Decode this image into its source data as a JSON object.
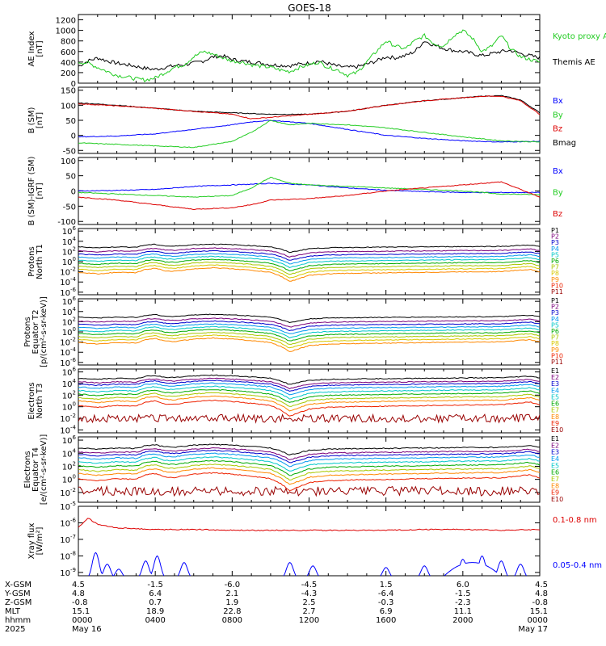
{
  "title": "GOES-18",
  "chart_data": [
    {
      "type": "line",
      "panel_id": "ae",
      "ylabel": [
        "AE Index",
        "[nT]"
      ],
      "yticks": [
        "0",
        "200",
        "400",
        "600",
        "800",
        "1000",
        "1200"
      ],
      "ylim": [
        0,
        1300
      ],
      "legend": [
        {
          "name": "Kyoto proxy AE",
          "color": "#22cc22"
        },
        {
          "name": "Themis AE",
          "color": "#000000"
        }
      ],
      "series": [
        {
          "name": "Themis AE",
          "color": "#000000",
          "x": [
            0,
            0.5,
            1,
            1.5,
            2,
            2.5,
            3,
            3.5,
            4,
            4.5,
            5,
            5.5,
            6,
            6.5,
            7,
            7.5,
            8,
            8.5,
            9,
            9.5,
            10,
            10.5,
            11,
            11.5,
            12,
            12.5,
            13,
            13.5,
            14,
            14.5,
            15,
            15.5,
            16,
            16.5,
            17,
            17.5,
            18,
            18.5,
            19,
            19.5,
            20,
            20.5,
            21,
            21.5,
            22,
            22.5,
            23,
            23.5,
            24
          ],
          "y": [
            320,
            420,
            480,
            420,
            380,
            350,
            320,
            280,
            260,
            300,
            330,
            350,
            380,
            420,
            500,
            520,
            450,
            420,
            400,
            380,
            350,
            340,
            330,
            360,
            380,
            420,
            370,
            320,
            300,
            310,
            360,
            420,
            500,
            480,
            520,
            600,
            800,
            720,
            660,
            620,
            600,
            560,
            520,
            560,
            600,
            620,
            560,
            520,
            480
          ]
        },
        {
          "name": "Kyoto proxy AE",
          "color": "#22cc22",
          "x": [
            0,
            0.5,
            1,
            1.5,
            2,
            2.5,
            3,
            3.5,
            4,
            4.5,
            5,
            5.5,
            6,
            6.5,
            7,
            7.5,
            8,
            8.5,
            9,
            9.5,
            10,
            10.5,
            11,
            11.5,
            12,
            12.5,
            13,
            13.5,
            14,
            14.5,
            15,
            15.5,
            16,
            16.5,
            17,
            17.5,
            18,
            18.5,
            19,
            19.5,
            20,
            20.5,
            21,
            21.5,
            22,
            22.5,
            23,
            23.5,
            24
          ],
          "y": [
            400,
            380,
            300,
            220,
            150,
            120,
            80,
            60,
            100,
            200,
            300,
            350,
            500,
            600,
            550,
            480,
            420,
            400,
            350,
            320,
            300,
            250,
            220,
            300,
            350,
            400,
            300,
            250,
            150,
            200,
            400,
            600,
            800,
            700,
            650,
            800,
            900,
            750,
            700,
            900,
            1000,
            850,
            600,
            700,
            900,
            650,
            500,
            450,
            400
          ]
        }
      ]
    },
    {
      "type": "line",
      "panel_id": "bsm",
      "ylabel": [
        "B (SM)",
        "[nT]"
      ],
      "yticks": [
        "-50",
        "0",
        "50",
        "100",
        "150"
      ],
      "ylim": [
        -60,
        160
      ],
      "legend": [
        {
          "name": "Bx",
          "color": "#0000ff"
        },
        {
          "name": "By",
          "color": "#22cc22"
        },
        {
          "name": "Bz",
          "color": "#dd0000"
        },
        {
          "name": "Bmag",
          "color": "#000000"
        }
      ],
      "series": [
        {
          "name": "Bmag",
          "color": "#000000",
          "x": [
            0,
            2,
            4,
            6,
            8,
            10,
            12,
            14,
            16,
            18,
            20,
            21,
            22,
            23,
            24
          ],
          "y": [
            108,
            100,
            90,
            80,
            75,
            70,
            70,
            80,
            100,
            115,
            125,
            130,
            132,
            118,
            75
          ]
        },
        {
          "name": "Bz",
          "color": "#dd0000",
          "x": [
            0,
            2,
            4,
            6,
            8,
            9,
            10,
            12,
            14,
            16,
            18,
            20,
            21,
            22,
            23,
            24
          ],
          "y": [
            105,
            98,
            90,
            80,
            70,
            55,
            60,
            70,
            80,
            100,
            115,
            125,
            130,
            130,
            115,
            70
          ]
        },
        {
          "name": "Bx",
          "color": "#0000ff",
          "x": [
            0,
            2,
            4,
            6,
            8,
            9,
            10,
            12,
            14,
            16,
            18,
            20,
            22,
            24
          ],
          "y": [
            -5,
            -2,
            5,
            20,
            35,
            45,
            50,
            40,
            20,
            0,
            -10,
            -18,
            -22,
            -20
          ]
        },
        {
          "name": "By",
          "color": "#22cc22",
          "x": [
            0,
            2,
            4,
            6,
            8,
            9,
            10,
            11,
            12,
            14,
            16,
            18,
            20,
            22,
            24
          ],
          "y": [
            -25,
            -30,
            -35,
            -40,
            -20,
            10,
            50,
            35,
            40,
            35,
            25,
            10,
            -5,
            -18,
            -22
          ]
        }
      ]
    },
    {
      "type": "line",
      "panel_id": "bigrf",
      "ylabel": [
        "B (SM)-IGRF (SM)",
        "[nT]"
      ],
      "yticks": [
        "-100",
        "-50",
        "0",
        "50",
        "100"
      ],
      "ylim": [
        -110,
        110
      ],
      "legend": [
        {
          "name": "Bx",
          "color": "#0000ff"
        },
        {
          "name": "By",
          "color": "#22cc22"
        },
        {
          "name": "Bz",
          "color": "#dd0000"
        }
      ],
      "series": [
        {
          "name": "Bx",
          "color": "#0000ff",
          "x": [
            0,
            2,
            4,
            6,
            8,
            9,
            10,
            12,
            14,
            16,
            18,
            20,
            22,
            24
          ],
          "y": [
            0,
            2,
            5,
            15,
            20,
            22,
            25,
            20,
            10,
            2,
            -2,
            -5,
            -5,
            -5
          ]
        },
        {
          "name": "By",
          "color": "#22cc22",
          "x": [
            0,
            2,
            4,
            6,
            8,
            9,
            10,
            11,
            12,
            14,
            16,
            18,
            20,
            22,
            24
          ],
          "y": [
            -5,
            -10,
            -15,
            -20,
            -15,
            10,
            45,
            25,
            20,
            15,
            10,
            5,
            0,
            -10,
            -12
          ]
        },
        {
          "name": "Bz",
          "color": "#dd0000",
          "x": [
            0,
            2,
            4,
            6,
            8,
            9,
            10,
            12,
            14,
            16,
            18,
            20,
            21,
            22,
            23,
            24
          ],
          "y": [
            -20,
            -30,
            -45,
            -60,
            -55,
            -45,
            -30,
            -25,
            -15,
            0,
            10,
            20,
            25,
            30,
            5,
            -20
          ]
        }
      ]
    },
    {
      "type": "line",
      "panel_id": "pn",
      "log": true,
      "ylabel": [
        "Protons",
        "North T1"
      ],
      "yticks": [
        "10^-6",
        "10^-4",
        "10^-2",
        "10^0",
        "10^2",
        "10^4",
        "10^6"
      ],
      "ylim_exp": [
        -6.5,
        6.5
      ],
      "legend": [
        {
          "name": "P1",
          "color": "#000000"
        },
        {
          "name": "P2",
          "color": "#7a007a"
        },
        {
          "name": "P3",
          "color": "#0000cc"
        },
        {
          "name": "P4",
          "color": "#0099ee"
        },
        {
          "name": "P5",
          "color": "#00c8c8"
        },
        {
          "name": "P6",
          "color": "#00aa00"
        },
        {
          "name": "P7",
          "color": "#a8c800"
        },
        {
          "name": "P8",
          "color": "#d8c800"
        },
        {
          "name": "P9",
          "color": "#ff8800"
        },
        {
          "name": "P10",
          "color": "#ee2200"
        },
        {
          "name": "P11",
          "color": "#990000"
        }
      ],
      "series_levels": [
        2.9,
        2.1,
        1.5,
        0.9,
        0.3,
        -0.3,
        -0.9,
        -1.5,
        -2.1
      ]
    },
    {
      "type": "line",
      "panel_id": "pe",
      "log": true,
      "ylabel": [
        "Protons",
        "Equator T2",
        "[p/(cm²-s-sr-keV)]"
      ],
      "yticks": [
        "10^-6",
        "10^-4",
        "10^-2",
        "10^0",
        "10^2",
        "10^4",
        "10^6"
      ],
      "ylim_exp": [
        -6.5,
        6.5
      ],
      "legend": [
        {
          "name": "P1",
          "color": "#000000"
        },
        {
          "name": "P2",
          "color": "#7a007a"
        },
        {
          "name": "P3",
          "color": "#0000cc"
        },
        {
          "name": "P4",
          "color": "#0099ee"
        },
        {
          "name": "P5",
          "color": "#00c8c8"
        },
        {
          "name": "P6",
          "color": "#00aa00"
        },
        {
          "name": "P7",
          "color": "#a8c800"
        },
        {
          "name": "P8",
          "color": "#d8c800"
        },
        {
          "name": "P9",
          "color": "#ff8800"
        },
        {
          "name": "P10",
          "color": "#ee2200"
        },
        {
          "name": "P11",
          "color": "#990000"
        }
      ],
      "series_levels": [
        2.9,
        2.1,
        1.5,
        0.9,
        0.3,
        -0.3,
        -0.9,
        -1.5,
        -2.1
      ]
    },
    {
      "type": "line",
      "panel_id": "en",
      "log": true,
      "ylabel": [
        "Electrons",
        "North T3"
      ],
      "yticks": [
        "10^-4",
        "10^-2",
        "10^0",
        "10^2",
        "10^4",
        "10^6"
      ],
      "ylim_exp": [
        -4.5,
        6.5
      ],
      "legend": [
        {
          "name": "E1",
          "color": "#000000"
        },
        {
          "name": "E2",
          "color": "#7a007a"
        },
        {
          "name": "E3",
          "color": "#0000cc"
        },
        {
          "name": "E4",
          "color": "#0099ee"
        },
        {
          "name": "E5",
          "color": "#00c8c8"
        },
        {
          "name": "E6",
          "color": "#00aa00"
        },
        {
          "name": "E7",
          "color": "#a8c800"
        },
        {
          "name": "E8",
          "color": "#ff8800"
        },
        {
          "name": "E9",
          "color": "#ee2200"
        },
        {
          "name": "E10",
          "color": "#990000"
        }
      ],
      "series_levels": [
        4.9,
        4.3,
        3.9,
        3.4,
        2.8,
        2.2,
        1.6,
        1.0,
        0.2,
        -2.0
      ]
    },
    {
      "type": "line",
      "panel_id": "ee",
      "log": true,
      "ylabel": [
        "Electrons",
        "Equator T4",
        "[e/(cm²-s-sr-keV)]"
      ],
      "yticks": [
        "10^-2",
        "10^0",
        "10^2",
        "10^4",
        "10^6"
      ],
      "ylim_exp": [
        -3.5,
        6.5
      ],
      "legend": [
        {
          "name": "E1",
          "color": "#000000"
        },
        {
          "name": "E2",
          "color": "#7a007a"
        },
        {
          "name": "E3",
          "color": "#0000cc"
        },
        {
          "name": "E4",
          "color": "#0099ee"
        },
        {
          "name": "E5",
          "color": "#00c8c8"
        },
        {
          "name": "E6",
          "color": "#00aa00"
        },
        {
          "name": "E7",
          "color": "#a8c800"
        },
        {
          "name": "E8",
          "color": "#ff8800"
        },
        {
          "name": "E9",
          "color": "#ee2200"
        },
        {
          "name": "E10",
          "color": "#990000"
        }
      ],
      "series_levels": [
        4.8,
        4.2,
        3.8,
        3.3,
        2.7,
        2.1,
        1.5,
        0.9,
        0.1,
        -1.8
      ]
    },
    {
      "type": "line",
      "panel_id": "xray",
      "log": true,
      "ylabel": [
        "Xray flux",
        "[W/m²]"
      ],
      "yticks": [
        "10^-9",
        "10^-8",
        "10^-7",
        "10^-6",
        "10^-5"
      ],
      "ylim_exp": [
        -9.2,
        -5.0
      ],
      "legend": [
        {
          "name": "0.1-0.8 nm",
          "color": "#dd0000"
        },
        {
          "name": "0.05-0.4 nm",
          "color": "#0000ff"
        }
      ],
      "series": [
        {
          "name": "0.1-0.8 nm",
          "color": "#dd0000",
          "x": [
            0,
            0.5,
            1,
            2,
            4,
            6,
            8,
            10,
            12,
            14,
            16,
            18,
            20,
            22,
            24
          ],
          "y_exp": [
            -6.3,
            -5.7,
            -6.1,
            -6.3,
            -6.4,
            -6.4,
            -6.45,
            -6.45,
            -6.45,
            -6.45,
            -6.45,
            -6.4,
            -6.4,
            -6.45,
            -6.4
          ]
        }
      ]
    }
  ],
  "orbit_table": {
    "row_labels": [
      "X-GSM",
      "Y-GSM",
      "Z-GSM",
      "MLT",
      "hhmm",
      "2025"
    ],
    "columns": [
      {
        "x": 0,
        "values": [
          "4.5",
          "4.8",
          "-0.8",
          "15.1",
          "0000",
          "May 16"
        ]
      },
      {
        "x": 4,
        "values": [
          "-1.5",
          "6.4",
          "0.7",
          "18.9",
          "0400",
          ""
        ]
      },
      {
        "x": 8,
        "values": [
          "-6.0",
          "2.1",
          "1.9",
          "22.8",
          "0800",
          ""
        ]
      },
      {
        "x": 12,
        "values": [
          "-4.5",
          "-4.3",
          "2.5",
          "2.7",
          "1200",
          ""
        ]
      },
      {
        "x": 16,
        "values": [
          "1.5",
          "-6.4",
          "-0.3",
          "6.9",
          "1600",
          ""
        ]
      },
      {
        "x": 20,
        "values": [
          "6.0",
          "-1.5",
          "-2.3",
          "11.1",
          "2000",
          ""
        ]
      },
      {
        "x": 24,
        "values": [
          "4.5",
          "4.8",
          "-0.8",
          "15.1",
          "0000",
          "May 17"
        ]
      }
    ]
  }
}
